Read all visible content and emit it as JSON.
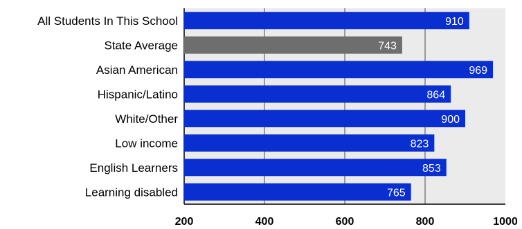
{
  "chart_data": {
    "type": "bar",
    "orientation": "horizontal",
    "title": "",
    "xlabel": "",
    "ylabel": "",
    "xlim": [
      200,
      1000
    ],
    "x_ticks": [
      "200",
      "400",
      "600",
      "800",
      "1000"
    ],
    "gridlines": [
      400,
      600,
      800
    ],
    "grid": true,
    "categories": [
      "All Students In This School",
      "State Average",
      "Asian American",
      "Hispanic/Latino",
      "White/Other",
      "Low income",
      "English Learners",
      "Learning disabled"
    ],
    "values": [
      910,
      743,
      969,
      864,
      900,
      823,
      853,
      765
    ],
    "value_labels": [
      "910",
      "743",
      "969",
      "864",
      "900",
      "823",
      "853",
      "765"
    ],
    "bar_colors": [
      "#0a2fd0",
      "#6e6e6e",
      "#0a2fd0",
      "#0a2fd0",
      "#0a2fd0",
      "#0a2fd0",
      "#0a2fd0",
      "#0a2fd0"
    ],
    "plot_background": "#ebebeb",
    "gridline_color": "#9a9a9a",
    "value_label_color": "#ffffff"
  }
}
